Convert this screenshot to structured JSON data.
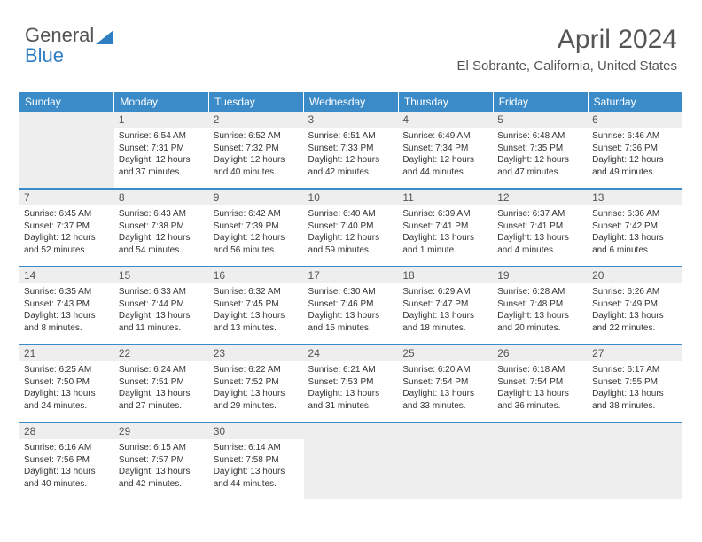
{
  "logo": {
    "line1": "General",
    "line2": "Blue"
  },
  "header": {
    "title": "April 2024",
    "subtitle": "El Sobrante, California, United States"
  },
  "colors": {
    "header_bg": "#3b8bc8",
    "header_text": "#ffffff",
    "daynum_bg": "#eeeeee",
    "text": "#333333",
    "title_text": "#555555",
    "logo_gray": "#555555",
    "logo_blue": "#2f7ec2"
  },
  "typography": {
    "title_fontsize": 30,
    "subtitle_fontsize": 15,
    "dayheader_fontsize": 12,
    "daynum_fontsize": 12,
    "cell_fontsize": 10
  },
  "calendar": {
    "type": "table",
    "day_headers": [
      "Sunday",
      "Monday",
      "Tuesday",
      "Wednesday",
      "Thursday",
      "Friday",
      "Saturday"
    ],
    "weeks": [
      [
        null,
        {
          "n": "1",
          "sunrise": "6:54 AM",
          "sunset": "7:31 PM",
          "dl": "12 hours and 37 minutes."
        },
        {
          "n": "2",
          "sunrise": "6:52 AM",
          "sunset": "7:32 PM",
          "dl": "12 hours and 40 minutes."
        },
        {
          "n": "3",
          "sunrise": "6:51 AM",
          "sunset": "7:33 PM",
          "dl": "12 hours and 42 minutes."
        },
        {
          "n": "4",
          "sunrise": "6:49 AM",
          "sunset": "7:34 PM",
          "dl": "12 hours and 44 minutes."
        },
        {
          "n": "5",
          "sunrise": "6:48 AM",
          "sunset": "7:35 PM",
          "dl": "12 hours and 47 minutes."
        },
        {
          "n": "6",
          "sunrise": "6:46 AM",
          "sunset": "7:36 PM",
          "dl": "12 hours and 49 minutes."
        }
      ],
      [
        {
          "n": "7",
          "sunrise": "6:45 AM",
          "sunset": "7:37 PM",
          "dl": "12 hours and 52 minutes."
        },
        {
          "n": "8",
          "sunrise": "6:43 AM",
          "sunset": "7:38 PM",
          "dl": "12 hours and 54 minutes."
        },
        {
          "n": "9",
          "sunrise": "6:42 AM",
          "sunset": "7:39 PM",
          "dl": "12 hours and 56 minutes."
        },
        {
          "n": "10",
          "sunrise": "6:40 AM",
          "sunset": "7:40 PM",
          "dl": "12 hours and 59 minutes."
        },
        {
          "n": "11",
          "sunrise": "6:39 AM",
          "sunset": "7:41 PM",
          "dl": "13 hours and 1 minute."
        },
        {
          "n": "12",
          "sunrise": "6:37 AM",
          "sunset": "7:41 PM",
          "dl": "13 hours and 4 minutes."
        },
        {
          "n": "13",
          "sunrise": "6:36 AM",
          "sunset": "7:42 PM",
          "dl": "13 hours and 6 minutes."
        }
      ],
      [
        {
          "n": "14",
          "sunrise": "6:35 AM",
          "sunset": "7:43 PM",
          "dl": "13 hours and 8 minutes."
        },
        {
          "n": "15",
          "sunrise": "6:33 AM",
          "sunset": "7:44 PM",
          "dl": "13 hours and 11 minutes."
        },
        {
          "n": "16",
          "sunrise": "6:32 AM",
          "sunset": "7:45 PM",
          "dl": "13 hours and 13 minutes."
        },
        {
          "n": "17",
          "sunrise": "6:30 AM",
          "sunset": "7:46 PM",
          "dl": "13 hours and 15 minutes."
        },
        {
          "n": "18",
          "sunrise": "6:29 AM",
          "sunset": "7:47 PM",
          "dl": "13 hours and 18 minutes."
        },
        {
          "n": "19",
          "sunrise": "6:28 AM",
          "sunset": "7:48 PM",
          "dl": "13 hours and 20 minutes."
        },
        {
          "n": "20",
          "sunrise": "6:26 AM",
          "sunset": "7:49 PM",
          "dl": "13 hours and 22 minutes."
        }
      ],
      [
        {
          "n": "21",
          "sunrise": "6:25 AM",
          "sunset": "7:50 PM",
          "dl": "13 hours and 24 minutes."
        },
        {
          "n": "22",
          "sunrise": "6:24 AM",
          "sunset": "7:51 PM",
          "dl": "13 hours and 27 minutes."
        },
        {
          "n": "23",
          "sunrise": "6:22 AM",
          "sunset": "7:52 PM",
          "dl": "13 hours and 29 minutes."
        },
        {
          "n": "24",
          "sunrise": "6:21 AM",
          "sunset": "7:53 PM",
          "dl": "13 hours and 31 minutes."
        },
        {
          "n": "25",
          "sunrise": "6:20 AM",
          "sunset": "7:54 PM",
          "dl": "13 hours and 33 minutes."
        },
        {
          "n": "26",
          "sunrise": "6:18 AM",
          "sunset": "7:54 PM",
          "dl": "13 hours and 36 minutes."
        },
        {
          "n": "27",
          "sunrise": "6:17 AM",
          "sunset": "7:55 PM",
          "dl": "13 hours and 38 minutes."
        }
      ],
      [
        {
          "n": "28",
          "sunrise": "6:16 AM",
          "sunset": "7:56 PM",
          "dl": "13 hours and 40 minutes."
        },
        {
          "n": "29",
          "sunrise": "6:15 AM",
          "sunset": "7:57 PM",
          "dl": "13 hours and 42 minutes."
        },
        {
          "n": "30",
          "sunrise": "6:14 AM",
          "sunset": "7:58 PM",
          "dl": "13 hours and 44 minutes."
        },
        null,
        null,
        null,
        null
      ]
    ]
  },
  "labels": {
    "sunrise": "Sunrise: ",
    "sunset": "Sunset: ",
    "daylight": "Daylight: "
  }
}
